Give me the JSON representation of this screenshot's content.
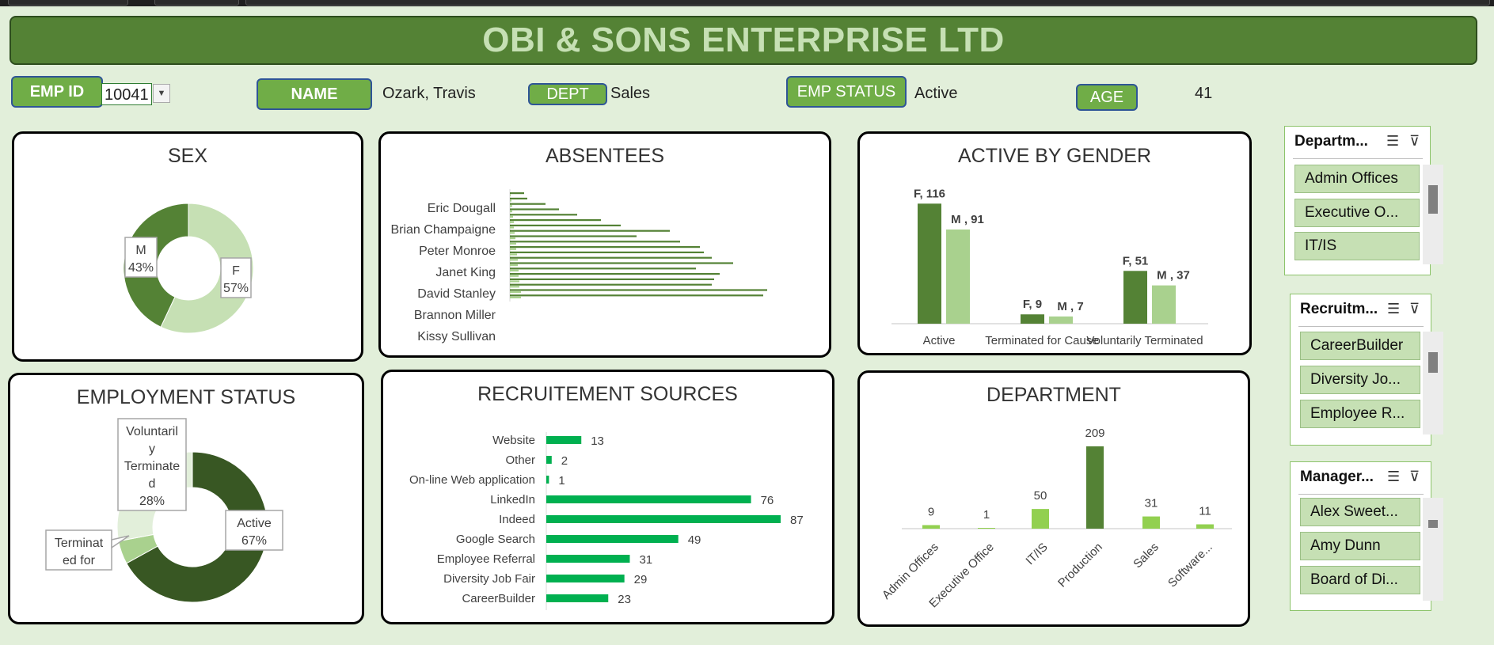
{
  "header": {
    "title": "OBI & SONS ENTERPRISE LTD"
  },
  "fields": {
    "emp_id_label": "EMP ID",
    "emp_id_value": "10041",
    "name_label": "NAME",
    "name_value": "Ozark, Travis",
    "dept_label": "DEPT",
    "dept_value": "Sales",
    "status_label": "EMP STATUS",
    "status_value": "Active",
    "age_label": "AGE",
    "age_value": "41"
  },
  "colors": {
    "dark_green": "#548235",
    "light_green": "#a9d18e",
    "bright_green": "#00b050",
    "lime": "#92d050"
  },
  "panels": {
    "sex": "SEX",
    "absentees": "ABSENTEES",
    "active_gender": "ACTIVE BY GENDER",
    "employment": "EMPLOYMENT STATUS",
    "recruitment": "RECRUITEMENT SOURCES",
    "department": "DEPARTMENT"
  },
  "chart_data": [
    {
      "id": "sex",
      "type": "pie",
      "title": "SEX",
      "donut": true,
      "slices": [
        {
          "label": "F",
          "value": 57,
          "display": "57%",
          "color": "#c6e0b4"
        },
        {
          "label": "M",
          "value": 43,
          "display": "43%",
          "color": "#548235"
        }
      ]
    },
    {
      "id": "absentees",
      "type": "bar",
      "orientation": "horizontal",
      "title": "ABSENTEES",
      "categories": [
        "Kissy Sullivan",
        "",
        "Brannon Miller",
        "",
        "David Stanley",
        "",
        "Janet King",
        "",
        "Peter Monroe",
        "",
        "Brian Champaigne",
        "",
        "Eric Dougall",
        ""
      ],
      "values": [
        2,
        2,
        3,
        3,
        4,
        4,
        5,
        5,
        6,
        6,
        7,
        7,
        8,
        8
      ],
      "series_count": 20,
      "lengths": [
        320,
        325,
        255,
        258,
        265,
        235,
        282,
        255,
        245,
        240,
        215,
        160,
        202,
        140,
        115,
        85,
        62,
        45,
        22,
        18
      ],
      "second_lengths": [
        14,
        14,
        12,
        12,
        11,
        11,
        10,
        10,
        9,
        8,
        8,
        7,
        6,
        5,
        5,
        4,
        3,
        3,
        2,
        1
      ]
    },
    {
      "id": "active_gender",
      "type": "bar",
      "title": "ACTIVE BY GENDER",
      "categories": [
        "Active",
        "Terminated for Cause",
        "Voluntarily Terminated"
      ],
      "series": [
        {
          "name": "F",
          "values": [
            116,
            9,
            51
          ],
          "color": "#548235"
        },
        {
          "name": "M",
          "values": [
            91,
            7,
            37
          ],
          "color": "#a9d18e"
        }
      ],
      "data_labels": [
        [
          "F, 116",
          "M , 91"
        ],
        [
          "F, 9",
          "M , 7"
        ],
        [
          "F, 51",
          "M , 37"
        ]
      ],
      "ylim": [
        0,
        130
      ]
    },
    {
      "id": "employment",
      "type": "pie",
      "title": "EMPLOYMENT STATUS",
      "donut": true,
      "slices": [
        {
          "label": "Active",
          "value": 67,
          "display": "67%",
          "color": "#385723"
        },
        {
          "label": "Terminated for",
          "value": 5,
          "display": "",
          "color": "#a9d18e"
        },
        {
          "label": "Voluntarily Terminated",
          "value": 28,
          "display": "28%",
          "color": "#e2efda"
        }
      ]
    },
    {
      "id": "recruitment",
      "type": "bar",
      "orientation": "horizontal",
      "title": "RECRUITEMENT SOURCES",
      "categories": [
        "Website",
        "Other",
        "On-line Web application",
        "LinkedIn",
        "Indeed",
        "Google Search",
        "Employee Referral",
        "Diversity Job Fair",
        "CareerBuilder"
      ],
      "values": [
        13,
        2,
        1,
        76,
        87,
        49,
        31,
        29,
        23
      ],
      "xlim": [
        0,
        87
      ],
      "color": "#00b050"
    },
    {
      "id": "department",
      "type": "bar",
      "title": "DEPARTMENT",
      "categories": [
        "Admin Offices",
        "Executive Office",
        "IT/IS",
        "Production",
        "Sales",
        "Software..."
      ],
      "values": [
        9,
        1,
        50,
        209,
        31,
        11
      ],
      "colors": [
        "#92d050",
        "#92d050",
        "#92d050",
        "#548235",
        "#92d050",
        "#92d050"
      ],
      "ylim": [
        0,
        209
      ]
    }
  ],
  "slicers": [
    {
      "title": "Departm...",
      "items": [
        "Admin Offices",
        "Executive O...",
        "IT/IS"
      ]
    },
    {
      "title": "Recruitm...",
      "items": [
        "CareerBuilder",
        "Diversity Jo...",
        "Employee R..."
      ]
    },
    {
      "title": "Manager...",
      "items": [
        "Alex Sweet...",
        "Amy Dunn",
        "Board of Di..."
      ]
    }
  ],
  "slicer_icons": {
    "multiselect": "multiselect-icon",
    "clear_filter": "clear-filter-icon"
  }
}
